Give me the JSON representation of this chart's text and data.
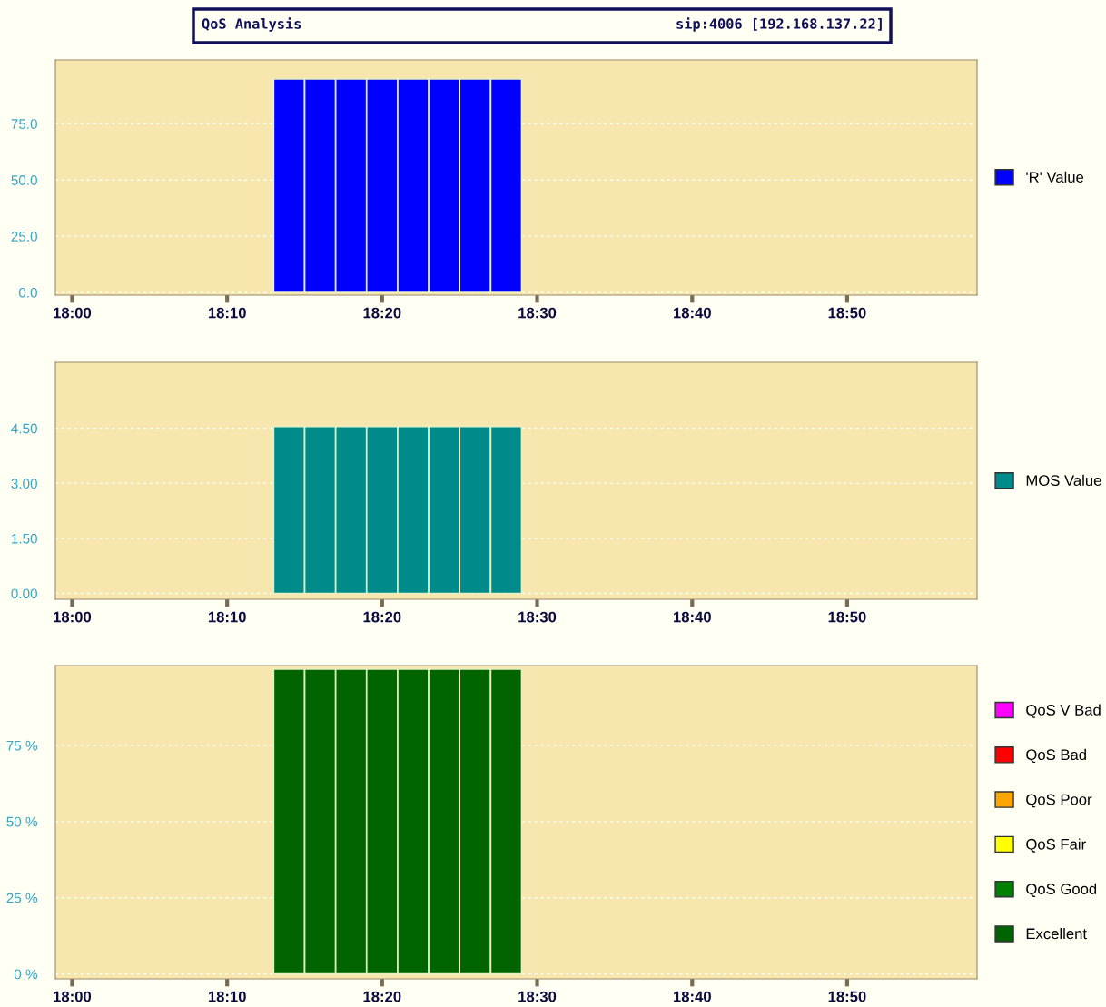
{
  "chart_data": [
    {
      "type": "bar",
      "title": "QoS Analysis",
      "subtitle": "sip:4006 [192.168.137.22]",
      "x": [
        18.2333,
        18.2667,
        18.3,
        18.3333,
        18.3667,
        18.4,
        18.4333,
        18.4667
      ],
      "series": [
        {
          "name": "'R' Value",
          "color": "#0000ff",
          "values": [
            95,
            95,
            95,
            95,
            95,
            95,
            95,
            95
          ]
        }
      ],
      "xlim": [
        17.982,
        18.973
      ],
      "xticks": [
        {
          "value": 18.0,
          "label": "18:00"
        },
        {
          "value": 18.1667,
          "label": "18:10"
        },
        {
          "value": 18.3333,
          "label": "18:20"
        },
        {
          "value": 18.5,
          "label": "18:30"
        },
        {
          "value": 18.6667,
          "label": "18:40"
        },
        {
          "value": 18.8333,
          "label": "18:50"
        }
      ],
      "ylim": [
        -1.2,
        103.4
      ],
      "yticks": [
        {
          "value": 0,
          "label": "0.0"
        },
        {
          "value": 25,
          "label": "25.0"
        },
        {
          "value": 50,
          "label": "50.0"
        },
        {
          "value": 75,
          "label": "75.0"
        }
      ],
      "grid": "y",
      "legend": "right"
    },
    {
      "type": "bar",
      "x": [
        18.2333,
        18.2667,
        18.3,
        18.3333,
        18.3667,
        18.4,
        18.4333,
        18.4667
      ],
      "series": [
        {
          "name": "MOS Value",
          "color": "#008b8b",
          "values": [
            4.55,
            4.55,
            4.55,
            4.55,
            4.55,
            4.55,
            4.55,
            4.55
          ]
        }
      ],
      "xlim": [
        17.982,
        18.973
      ],
      "xticks": [
        {
          "value": 18.0,
          "label": "18:00"
        },
        {
          "value": 18.1667,
          "label": "18:10"
        },
        {
          "value": 18.3333,
          "label": "18:20"
        },
        {
          "value": 18.5,
          "label": "18:30"
        },
        {
          "value": 18.6667,
          "label": "18:40"
        },
        {
          "value": 18.8333,
          "label": "18:50"
        }
      ],
      "ylim": [
        -0.16,
        6.3
      ],
      "yticks": [
        {
          "value": 0,
          "label": "0.00"
        },
        {
          "value": 1.5,
          "label": "1.50"
        },
        {
          "value": 3.0,
          "label": "3.00"
        },
        {
          "value": 4.5,
          "label": "4.50"
        }
      ],
      "grid": "y",
      "legend": "right"
    },
    {
      "type": "bar",
      "x": [
        18.2333,
        18.2667,
        18.3,
        18.3333,
        18.3667,
        18.4,
        18.4333,
        18.4667
      ],
      "series": [
        {
          "name": "QoS V Bad",
          "color": "#ff00ff",
          "values": [
            null,
            null,
            null,
            null,
            null,
            null,
            null,
            null
          ]
        },
        {
          "name": "QoS Bad",
          "color": "#ff0000",
          "values": [
            null,
            null,
            null,
            null,
            null,
            null,
            null,
            null
          ]
        },
        {
          "name": "QoS Poor",
          "color": "#ffa500",
          "values": [
            null,
            null,
            null,
            null,
            null,
            null,
            null,
            null
          ]
        },
        {
          "name": "QoS Fair",
          "color": "#ffff00",
          "values": [
            null,
            null,
            null,
            null,
            null,
            null,
            null,
            null
          ]
        },
        {
          "name": "QoS Good",
          "color": "#008000",
          "values": [
            null,
            null,
            null,
            null,
            null,
            null,
            null,
            null
          ]
        },
        {
          "name": "Excellent",
          "color": "#006400",
          "values": [
            100,
            100,
            100,
            100,
            100,
            100,
            100,
            100
          ]
        }
      ],
      "xlim": [
        17.982,
        18.973
      ],
      "xticks": [
        {
          "value": 18.0,
          "label": "18:00"
        },
        {
          "value": 18.1667,
          "label": "18:10"
        },
        {
          "value": 18.3333,
          "label": "18:20"
        },
        {
          "value": 18.5,
          "label": "18:30"
        },
        {
          "value": 18.6667,
          "label": "18:40"
        },
        {
          "value": 18.8333,
          "label": "18:50"
        }
      ],
      "ylim": [
        -1.6,
        101.2
      ],
      "yticks": [
        {
          "value": 0,
          "label": "0 %"
        },
        {
          "value": 25,
          "label": "25 %"
        },
        {
          "value": 50,
          "label": "50 %"
        },
        {
          "value": 75,
          "label": "75 %"
        }
      ],
      "grid": "y",
      "legend": "right"
    }
  ]
}
